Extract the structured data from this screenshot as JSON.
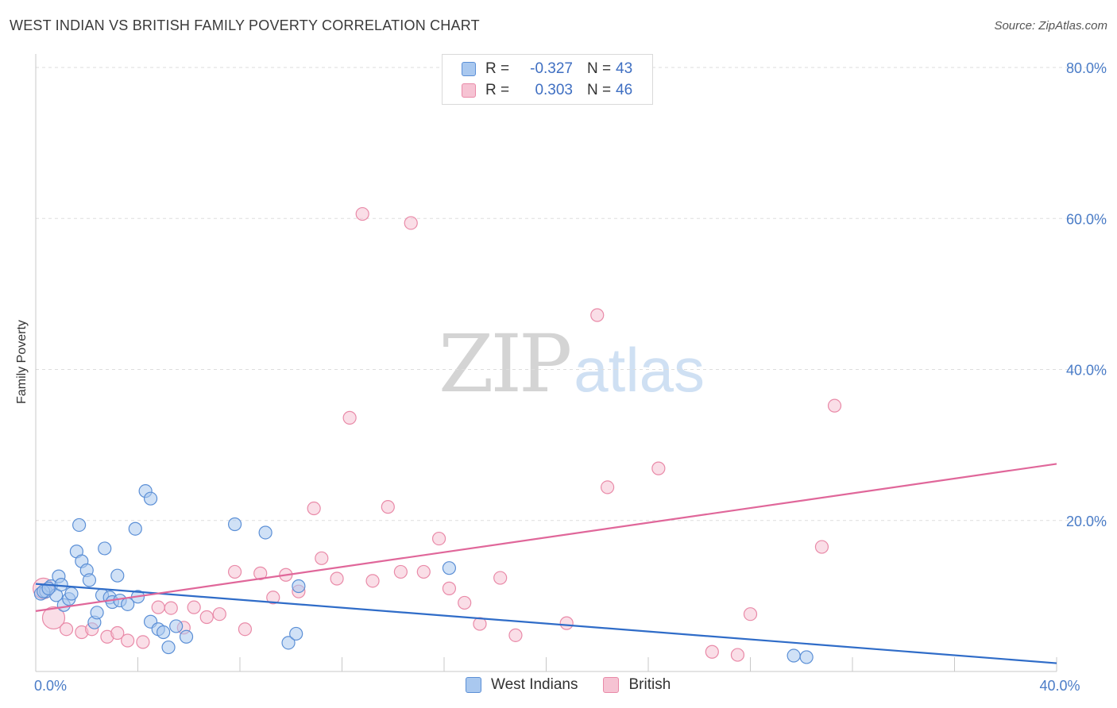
{
  "title": "WEST INDIAN VS BRITISH FAMILY POVERTY CORRELATION CHART",
  "source": "Source: ZipAtlas.com",
  "watermark": {
    "zip": "ZIP",
    "atlas": "atlas"
  },
  "legend": {
    "rows": [
      {
        "r_label": "R =",
        "r_value": "-0.327",
        "n_label": "N =",
        "n_value": "43"
      },
      {
        "r_label": "R =",
        "r_value": "0.303",
        "n_label": "N =",
        "n_value": "46"
      }
    ]
  },
  "bottom_legend": [
    "West Indians",
    "British"
  ],
  "colors": {
    "blue_fill": "#a9c8ef",
    "blue_stroke": "#5b8fd6",
    "blue_line": "#2f6cc8",
    "pink_fill": "#f6c3d3",
    "pink_stroke": "#e98aa8",
    "pink_line": "#e0679a",
    "grid": "#dddddd",
    "axis_text": "#4a7cc7"
  },
  "chart_data": {
    "type": "scatter",
    "title": "WEST INDIAN VS BRITISH FAMILY POVERTY CORRELATION CHART",
    "xlabel": "",
    "ylabel": "Family Poverty",
    "xlim": [
      0,
      40
    ],
    "ylim": [
      0,
      80
    ],
    "x_tick_labels": [
      {
        "value": 0,
        "label": "0.0%"
      },
      {
        "value": 40,
        "label": "40.0%"
      }
    ],
    "y_tick_labels": [
      {
        "value": 20,
        "label": "20.0%"
      },
      {
        "value": 40,
        "label": "40.0%"
      },
      {
        "value": 60,
        "label": "60.0%"
      },
      {
        "value": 80,
        "label": "80.0%"
      }
    ],
    "series": [
      {
        "name": "West Indians",
        "r": -0.327,
        "n": 43,
        "trend": {
          "x0": 0,
          "y0": 11.6,
          "x1": 40,
          "y1": 1.1
        },
        "points": [
          [
            0.2,
            10.3
          ],
          [
            0.4,
            10.6
          ],
          [
            0.6,
            11.3
          ],
          [
            0.8,
            10.1
          ],
          [
            0.9,
            12.6
          ],
          [
            1.1,
            8.8
          ],
          [
            1.3,
            9.6
          ],
          [
            1.4,
            10.3
          ],
          [
            1.6,
            15.9
          ],
          [
            1.7,
            19.4
          ],
          [
            1.8,
            14.6
          ],
          [
            2.0,
            13.4
          ],
          [
            2.1,
            12.1
          ],
          [
            2.3,
            6.5
          ],
          [
            2.4,
            7.8
          ],
          [
            2.6,
            10.1
          ],
          [
            2.7,
            16.3
          ],
          [
            2.9,
            9.8
          ],
          [
            3.0,
            9.2
          ],
          [
            3.2,
            12.7
          ],
          [
            3.3,
            9.4
          ],
          [
            3.6,
            8.9
          ],
          [
            3.9,
            18.9
          ],
          [
            4.0,
            9.9
          ],
          [
            4.3,
            23.9
          ],
          [
            4.5,
            22.9
          ],
          [
            4.5,
            6.6
          ],
          [
            4.8,
            5.6
          ],
          [
            5.0,
            5.2
          ],
          [
            5.2,
            3.2
          ],
          [
            5.5,
            6.0
          ],
          [
            5.9,
            4.6
          ],
          [
            7.8,
            19.5
          ],
          [
            9.0,
            18.4
          ],
          [
            9.9,
            3.8
          ],
          [
            10.2,
            5.0
          ],
          [
            10.3,
            11.3
          ],
          [
            16.2,
            13.7
          ],
          [
            29.7,
            2.1
          ],
          [
            30.2,
            1.9
          ],
          [
            0.3,
            10.6
          ],
          [
            0.5,
            11.0
          ],
          [
            1.0,
            11.5
          ]
        ]
      },
      {
        "name": "British",
        "r": 0.303,
        "n": 46,
        "trend": {
          "x0": 0,
          "y0": 8.0,
          "x1": 40,
          "y1": 27.5
        },
        "points": [
          [
            0.3,
            11.0
          ],
          [
            0.7,
            7.1
          ],
          [
            1.2,
            5.6
          ],
          [
            1.8,
            5.2
          ],
          [
            2.2,
            5.6
          ],
          [
            2.8,
            4.6
          ],
          [
            3.2,
            5.1
          ],
          [
            3.6,
            4.1
          ],
          [
            4.2,
            3.9
          ],
          [
            4.8,
            8.5
          ],
          [
            5.3,
            8.4
          ],
          [
            5.8,
            5.8
          ],
          [
            6.2,
            8.5
          ],
          [
            6.7,
            7.2
          ],
          [
            7.2,
            7.6
          ],
          [
            7.8,
            13.2
          ],
          [
            8.2,
            5.6
          ],
          [
            8.8,
            13.0
          ],
          [
            9.3,
            9.8
          ],
          [
            9.8,
            12.8
          ],
          [
            10.3,
            10.6
          ],
          [
            10.9,
            21.6
          ],
          [
            11.2,
            15.0
          ],
          [
            11.8,
            12.3
          ],
          [
            12.3,
            33.6
          ],
          [
            12.8,
            60.6
          ],
          [
            13.2,
            12.0
          ],
          [
            13.8,
            21.8
          ],
          [
            14.3,
            13.2
          ],
          [
            14.7,
            59.4
          ],
          [
            15.2,
            13.2
          ],
          [
            15.8,
            17.6
          ],
          [
            16.2,
            11.0
          ],
          [
            16.8,
            9.1
          ],
          [
            17.4,
            6.3
          ],
          [
            18.2,
            12.4
          ],
          [
            18.8,
            4.8
          ],
          [
            20.8,
            6.4
          ],
          [
            22.0,
            47.2
          ],
          [
            22.4,
            24.4
          ],
          [
            24.4,
            26.9
          ],
          [
            26.5,
            2.6
          ],
          [
            27.5,
            2.2
          ],
          [
            28.0,
            7.6
          ],
          [
            30.8,
            16.5
          ],
          [
            31.3,
            35.2
          ]
        ]
      }
    ]
  }
}
